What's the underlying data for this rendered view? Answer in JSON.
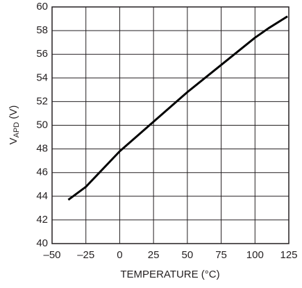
{
  "chart_data": {
    "type": "line",
    "xlabel": "TEMPERATURE (°C)",
    "ylabel": [
      "V",
      "APD",
      " (V)"
    ],
    "x": [
      -38,
      -25,
      0,
      25,
      50,
      75,
      100,
      110,
      124
    ],
    "series": [
      {
        "color": "#000000",
        "values": [
          43.7,
          44.8,
          47.8,
          50.3,
          52.8,
          55.1,
          57.4,
          58.2,
          59.2
        ]
      }
    ],
    "xlim": [
      -50,
      125
    ],
    "xticks": [
      {
        "value": -50,
        "label": "–50"
      },
      {
        "value": -25,
        "label": "–25"
      },
      0,
      25,
      50,
      75,
      100,
      125
    ],
    "ylim": [
      40,
      60
    ],
    "yticks": [
      40,
      42,
      44,
      46,
      48,
      50,
      52,
      54,
      56,
      58,
      60
    ],
    "grid": true
  }
}
